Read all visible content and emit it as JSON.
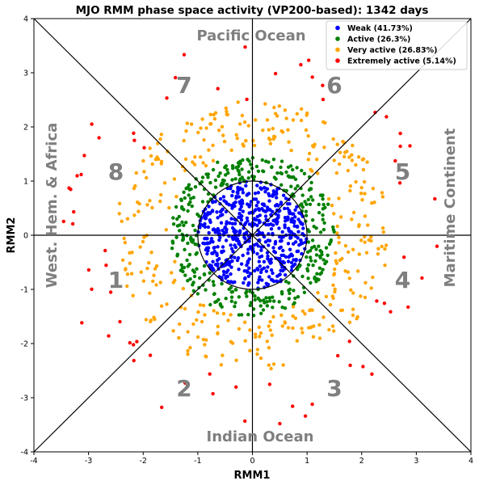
{
  "chart_data": {
    "type": "scatter",
    "title": "MJO RMM phase space activity (VP200-based): 1342 days",
    "xlabel": "RMM1",
    "ylabel": "RMM2",
    "xlim": [
      -4,
      4
    ],
    "ylim": [
      -4,
      4
    ],
    "xticks": [
      "-4",
      "-3",
      "-2",
      "-1",
      "0",
      "1",
      "2",
      "3",
      "4"
    ],
    "yticks": [
      "-4",
      "-3",
      "-2",
      "-1",
      "0",
      "1",
      "2",
      "3",
      "4"
    ],
    "grid": false,
    "legend_position": "top-right",
    "unit_circle_radius": 1,
    "phases": [
      {
        "label": "1",
        "x": -2.5,
        "y": -0.85
      },
      {
        "label": "2",
        "x": -1.25,
        "y": -2.85
      },
      {
        "label": "3",
        "x": 1.5,
        "y": -2.85
      },
      {
        "label": "4",
        "x": 2.75,
        "y": -0.85
      },
      {
        "label": "5",
        "x": 2.75,
        "y": 1.15
      },
      {
        "label": "6",
        "x": 1.5,
        "y": 2.75
      },
      {
        "label": "7",
        "x": -1.25,
        "y": 2.75
      },
      {
        "label": "8",
        "x": -2.5,
        "y": 1.15
      }
    ],
    "regions": {
      "top": "Pacific Ocean",
      "bottom": "Indian Ocean",
      "left": "West. Hem. & Africa",
      "right": "Maritime Continent"
    },
    "series": [
      {
        "name": "Weak (41.73%)",
        "color": "#0000ff",
        "count": 560,
        "r_min": 0.0,
        "r_max": 1.0
      },
      {
        "name": "Active (26.3%)",
        "color": "#008000",
        "count": 353,
        "r_min": 1.0,
        "r_max": 1.5
      },
      {
        "name": "Very active (26.83%)",
        "color": "#ffa500",
        "count": 360,
        "r_min": 1.5,
        "r_max": 2.5
      },
      {
        "name": "Extremely active (5.14%)",
        "color": "#ff0000",
        "count": 69,
        "r_min": 2.5,
        "r_max": 3.6
      }
    ]
  }
}
